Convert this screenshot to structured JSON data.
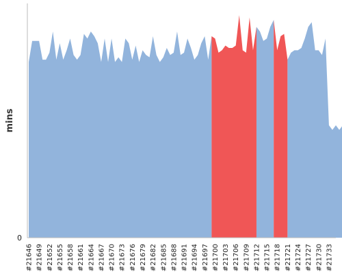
{
  "chart_data": {
    "type": "area",
    "ylabel": "mins",
    "xlabel": "",
    "title": "",
    "y_ticks": [
      "0"
    ],
    "colors": {
      "normal": "#92b4dc",
      "failed": "#f05656",
      "axis": "#bbbbbb"
    },
    "x_tick_labels": [
      "#21646",
      "#21649",
      "#21652",
      "#21655",
      "#21658",
      "#21661",
      "#21664",
      "#21667",
      "#21670",
      "#21673",
      "#21676",
      "#21679",
      "#21682",
      "#21685",
      "#21688",
      "#21691",
      "#21694",
      "#21697",
      "#21700",
      "#21703",
      "#21706",
      "#21709",
      "#21712",
      "#21715",
      "#21718",
      "#21721",
      "#21724",
      "#21727",
      "#21730",
      "#21733"
    ],
    "x_start": 21646,
    "x_end": 21735,
    "ylim": [
      0,
      100
    ],
    "values": [
      75,
      84,
      84,
      84,
      76,
      76,
      79,
      88,
      76,
      83,
      76,
      80,
      85,
      78,
      76,
      78,
      87,
      85,
      88,
      86,
      83,
      75,
      85,
      75,
      85,
      75,
      77,
      75,
      85,
      83,
      76,
      82,
      75,
      80,
      78,
      77,
      86,
      78,
      75,
      77,
      81,
      78,
      79,
      88,
      78,
      79,
      85,
      81,
      76,
      78,
      83,
      86,
      76,
      86,
      85,
      79,
      80,
      82,
      81,
      81,
      82,
      95,
      80,
      79,
      94,
      80,
      90,
      88,
      84,
      85,
      90,
      93,
      80,
      86,
      87,
      76,
      79,
      80,
      80,
      81,
      85,
      90,
      92,
      80,
      80,
      78,
      85,
      48,
      46,
      48,
      46,
      48,
      46,
      45,
      46
    ],
    "failed_ranges": [
      [
        21700,
        21712
      ],
      [
        21718,
        21721
      ]
    ]
  }
}
